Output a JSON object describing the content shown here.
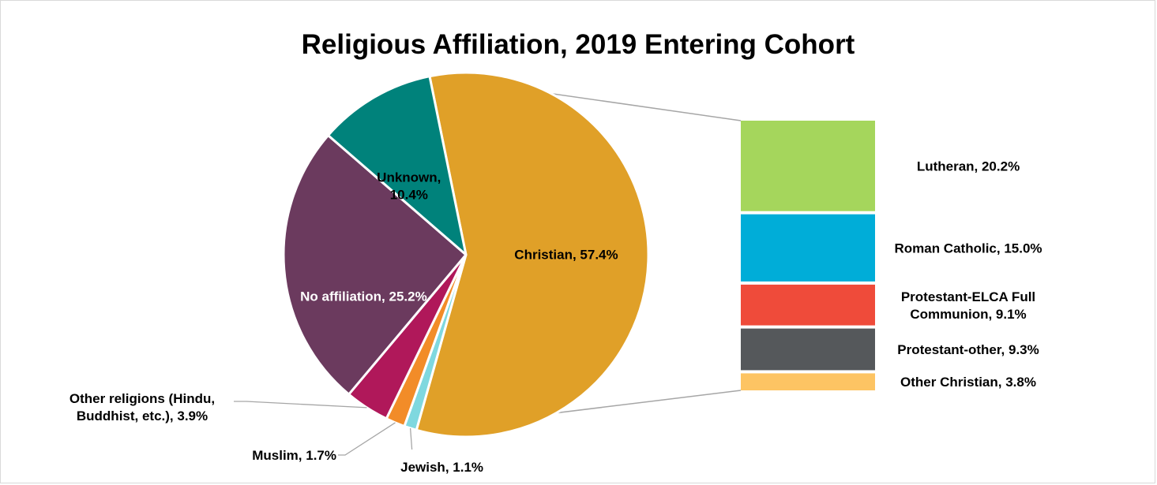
{
  "chart_data": {
    "type": "pie",
    "subtype": "bar-of-pie",
    "title": "Religious Affiliation, 2019 Entering Cohort",
    "pie": [
      {
        "label": "Christian, 57.4%",
        "name": "Christian",
        "value": 57.4,
        "color": "#E0A028",
        "label_color": "#000000"
      },
      {
        "label": "Jewish, 1.1%",
        "name": "Jewish",
        "value": 1.1,
        "color": "#7FD8DF",
        "label_color": "#000000"
      },
      {
        "label": "Muslim, 1.7%",
        "name": "Muslim",
        "value": 1.7,
        "color": "#F28C28",
        "label_color": "#000000"
      },
      {
        "label": "Other religions (Hindu, Buddhist, etc.), 3.9%",
        "label_lines": [
          "Other religions (Hindu,",
          "Buddhist, etc.), 3.9%"
        ],
        "name": "Other religions (Hindu, Buddhist, etc.)",
        "value": 3.9,
        "color": "#B0185A",
        "label_color": "#000000"
      },
      {
        "label": "No affiliation, 25.2%",
        "name": "No affiliation",
        "value": 25.2,
        "color": "#6B3A5E",
        "label_color": "#ffffff"
      },
      {
        "label": "Unknown, 10.4%",
        "label_lines": [
          "Unknown,",
          "10.4%"
        ],
        "name": "Unknown",
        "value": 10.4,
        "color": "#00827B",
        "label_color": "#000000"
      }
    ],
    "breakdown_of": "Christian",
    "breakdown": [
      {
        "label": "Lutheran, 20.2%",
        "name": "Lutheran",
        "value": 20.2,
        "color": "#A5D65C"
      },
      {
        "label": "Roman Catholic, 15.0%",
        "name": "Roman Catholic",
        "value": 15.0,
        "color": "#00ADD8"
      },
      {
        "label": "Protestant-ELCA Full Communion, 9.1%",
        "label_lines": [
          "Protestant-ELCA Full",
          "Communion, 9.1%"
        ],
        "name": "Protestant-ELCA Full Communion",
        "value": 9.1,
        "color": "#EF4B3A"
      },
      {
        "label": "Protestant-other, 9.3%",
        "name": "Protestant-other",
        "value": 9.3,
        "color": "#55585B"
      },
      {
        "label": "Other Christian, 3.8%",
        "name": "Other Christian",
        "value": 3.8,
        "color": "#FDC463"
      }
    ]
  }
}
